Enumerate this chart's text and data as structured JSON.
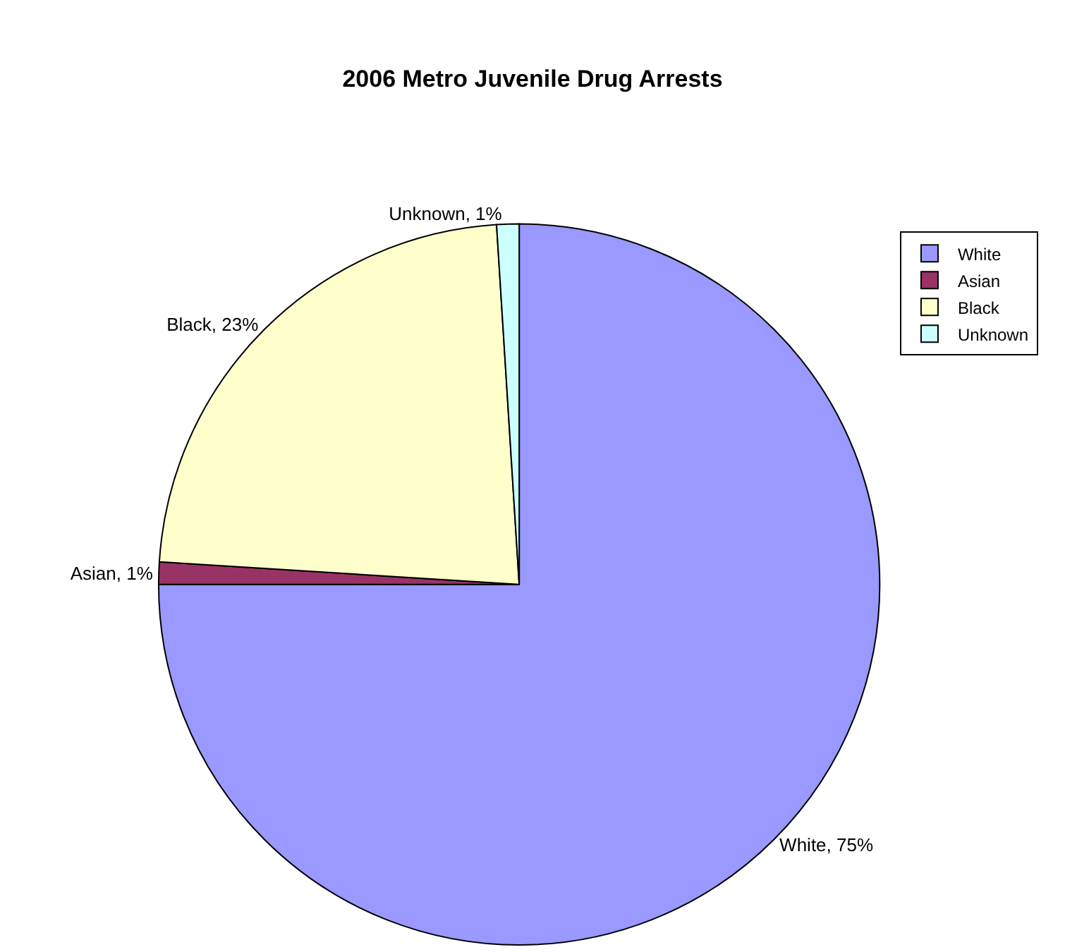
{
  "chart_data": {
    "type": "pie",
    "title": "2006 Metro Juvenile Drug Arrests",
    "categories": [
      "White",
      "Asian",
      "Black",
      "Unknown"
    ],
    "values": [
      75,
      1,
      23,
      1
    ],
    "colors": [
      "#9999ff",
      "#993366",
      "#ffffcc",
      "#ccffff"
    ],
    "value_labels": [
      "White, 75%",
      "Asian, 1%",
      "Black, 23%",
      "Unknown, 1%"
    ],
    "legend": "top right"
  }
}
